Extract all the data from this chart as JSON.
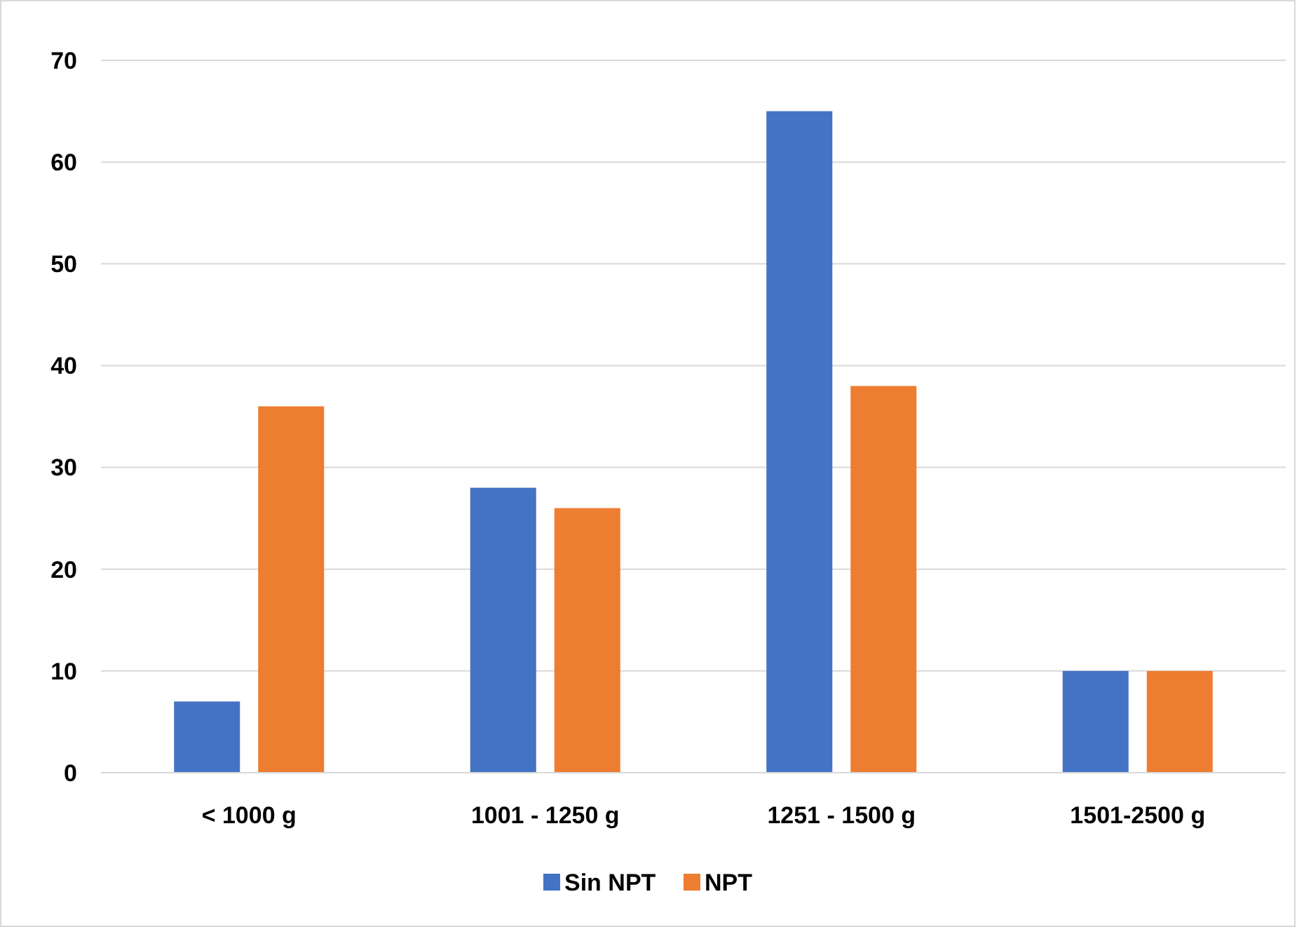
{
  "chart_data": {
    "type": "bar",
    "categories": [
      "< 1000 g",
      "1001 - 1250 g",
      "1251 - 1500 g",
      "1501-2500 g"
    ],
    "series": [
      {
        "name": "Sin NPT",
        "color": "#4472c4",
        "values": [
          7,
          28,
          65,
          10
        ]
      },
      {
        "name": "NPT",
        "color": "#ed7d31",
        "values": [
          36,
          26,
          38,
          10
        ]
      }
    ],
    "ylim": [
      0,
      70
    ],
    "yticks": [
      0,
      10,
      20,
      30,
      40,
      50,
      60,
      70
    ],
    "grid": "y",
    "legend": "bottom"
  }
}
